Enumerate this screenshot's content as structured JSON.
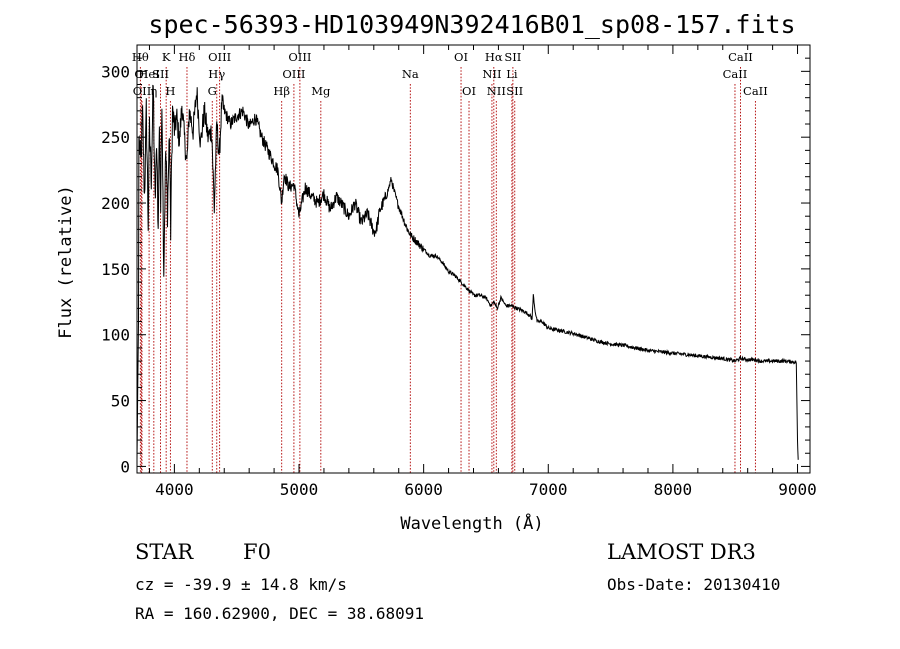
{
  "chart_data": {
    "type": "line",
    "title": "spec-56393-HD103949N392416B01_sp08-157.fits",
    "xlabel": "Wavelength (Å)",
    "ylabel": "Flux (relative)",
    "xlim": [
      3700,
      9100
    ],
    "ylim": [
      -5,
      320
    ],
    "xticks": [
      4000,
      5000,
      6000,
      7000,
      8000,
      9000
    ],
    "yticks": [
      0,
      50,
      100,
      150,
      200,
      250,
      300
    ],
    "series": [
      {
        "name": "flux",
        "x": [
          3700,
          3712,
          3715,
          3730,
          3745,
          3760,
          3775,
          3790,
          3800,
          3815,
          3830,
          3845,
          3860,
          3870,
          3880,
          3890,
          3900,
          3915,
          3930,
          3945,
          3960,
          3970,
          3985,
          4000,
          4020,
          4040,
          4060,
          4080,
          4100,
          4120,
          4150,
          4180,
          4210,
          4240,
          4270,
          4300,
          4320,
          4340,
          4360,
          4380,
          4400,
          4450,
          4500,
          4550,
          4600,
          4650,
          4700,
          4750,
          4800,
          4830,
          4861,
          4880,
          4920,
          4960,
          5000,
          5050,
          5100,
          5150,
          5200,
          5250,
          5300,
          5350,
          5400,
          5450,
          5500,
          5550,
          5600,
          5620,
          5650,
          5700,
          5740,
          5760,
          5790,
          5830,
          5870,
          5900,
          5950,
          6000,
          6050,
          6100,
          6150,
          6200,
          6250,
          6300,
          6350,
          6400,
          6450,
          6500,
          6540,
          6563,
          6590,
          6620,
          6660,
          6700,
          6750,
          6800,
          6850,
          6870,
          6880,
          6895,
          6910,
          6950,
          7000,
          7100,
          7200,
          7300,
          7400,
          7500,
          7600,
          7700,
          7800,
          7900,
          8000,
          8100,
          8200,
          8300,
          8400,
          8498,
          8542,
          8600,
          8662,
          8700,
          8800,
          8900,
          8990,
          9000,
          9005
        ],
        "values": [
          5,
          110,
          250,
          230,
          265,
          205,
          270,
          185,
          255,
          220,
          290,
          200,
          245,
          175,
          265,
          195,
          285,
          150,
          240,
          195,
          255,
          180,
          270,
          255,
          265,
          245,
          275,
          250,
          230,
          270,
          255,
          285,
          245,
          270,
          250,
          255,
          195,
          260,
          235,
          275,
          270,
          260,
          266,
          270,
          258,
          265,
          250,
          240,
          230,
          225,
          200,
          222,
          212,
          214,
          190,
          212,
          205,
          200,
          207,
          195,
          205,
          198,
          190,
          200,
          185,
          192,
          178,
          180,
          195,
          205,
          218,
          210,
          200,
          190,
          180,
          175,
          170,
          165,
          160,
          160,
          155,
          148,
          145,
          140,
          135,
          130,
          130,
          128,
          122,
          125,
          120,
          128,
          122,
          122,
          120,
          118,
          115,
          112,
          130,
          118,
          110,
          110,
          105,
          103,
          101,
          98,
          95,
          93,
          92,
          90,
          88,
          87,
          86,
          85,
          84,
          83,
          82,
          80,
          82,
          81,
          81,
          80,
          80,
          80,
          79,
          20,
          5
        ]
      }
    ],
    "spectral_lines": [
      {
        "wavelength": 3727,
        "row": 0,
        "text": "Hθ",
        "color": "#b00000"
      },
      {
        "wavelength": 3735,
        "row": 1,
        "text": "OI",
        "color": "#b00000"
      },
      {
        "wavelength": 3740,
        "row": 2,
        "text": "OII",
        "color": "#b00000"
      },
      {
        "wavelength": 3797,
        "row": 1,
        "text": "HeI",
        "color": "#b00000"
      },
      {
        "wavelength": 3835,
        "row": 2,
        "text": "η",
        "color": "#b00000"
      },
      {
        "wavelength": 3889,
        "row": 1,
        "text": "SII",
        "color": "#b00000"
      },
      {
        "wavelength": 3934,
        "row": 0,
        "text": "K",
        "color": "#b00000"
      },
      {
        "wavelength": 3968,
        "row": 2,
        "text": "H",
        "color": "#b00000"
      },
      {
        "wavelength": 4101,
        "row": 0,
        "text": "Hδ",
        "color": "#b00000"
      },
      {
        "wavelength": 4304,
        "row": 2,
        "text": "G",
        "color": "#b00000"
      },
      {
        "wavelength": 4340,
        "row": 1,
        "text": "Hγ",
        "color": "#b00000"
      },
      {
        "wavelength": 4363,
        "row": 0,
        "text": "OIII",
        "color": "#b00000"
      },
      {
        "wavelength": 4861,
        "row": 2,
        "text": "Hβ",
        "color": "#b00000"
      },
      {
        "wavelength": 4959,
        "row": 1,
        "text": "OIII",
        "color": "#b00000"
      },
      {
        "wavelength": 5007,
        "row": 0,
        "text": "OIII",
        "color": "#b00000"
      },
      {
        "wavelength": 5175,
        "row": 2,
        "text": "Mg",
        "color": "#b00000"
      },
      {
        "wavelength": 5893,
        "row": 1,
        "text": "Na",
        "color": "#b00000"
      },
      {
        "wavelength": 6300,
        "row": 0,
        "text": "OI",
        "color": "#b00000"
      },
      {
        "wavelength": 6364,
        "row": 2,
        "text": "OI",
        "color": "#b00000"
      },
      {
        "wavelength": 6548,
        "row": 1,
        "text": "NII",
        "color": "#b00000"
      },
      {
        "wavelength": 6563,
        "row": 0,
        "text": "Hα",
        "color": "#b00000"
      },
      {
        "wavelength": 6583,
        "row": 2,
        "text": "NII",
        "color": "#b00000"
      },
      {
        "wavelength": 6708,
        "row": 1,
        "text": "Li",
        "color": "#b00000"
      },
      {
        "wavelength": 6716,
        "row": 0,
        "text": "SII",
        "color": "#b00000"
      },
      {
        "wavelength": 6731,
        "row": 2,
        "text": "SII",
        "color": "#b00000"
      },
      {
        "wavelength": 8498,
        "row": 1,
        "text": "CaII",
        "color": "#b00000"
      },
      {
        "wavelength": 8542,
        "row": 0,
        "text": "CaII",
        "color": "#b00000"
      },
      {
        "wavelength": 8662,
        "row": 2,
        "text": "CaII",
        "color": "#b00000"
      }
    ]
  },
  "info": {
    "object_class": "STAR",
    "subclass": "F0",
    "survey": "LAMOST DR3",
    "redshift_line": "cz = -39.9 ± 14.8 km/s",
    "obs_date_line": "Obs-Date: 20130410",
    "coords_line": "RA = 160.62900, DEC =  38.68091"
  }
}
